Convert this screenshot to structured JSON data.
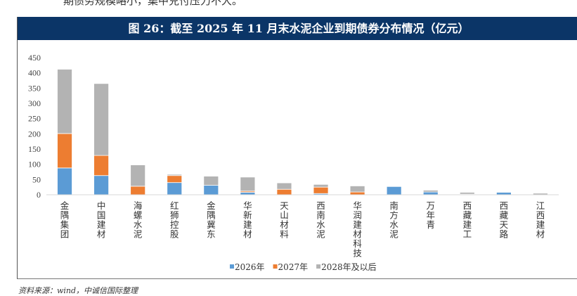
{
  "top_text": "期债务规模略小，集中兑付压力不大。",
  "header": {
    "title": "图 26：截至 2025 年 11 月末水泥企业到期债券分布情况（亿元）"
  },
  "source": "资料来源：wind，中诚信国际整理",
  "colors": {
    "header_bg": "#0b3567",
    "s2026": "#5b9bd5",
    "s2027": "#ed7d31",
    "s2028": "#b3b3b3"
  },
  "chart_data": {
    "type": "bar",
    "stacked": true,
    "title": "",
    "xlabel": "",
    "ylabel": "",
    "ylim": [
      0,
      450
    ],
    "yticks": [
      0,
      50,
      100,
      150,
      200,
      250,
      300,
      350,
      400,
      450
    ],
    "grid": false,
    "legend_position": "bottom",
    "categories": [
      "金隅集团",
      "中国建材",
      "海螺水泥",
      "红狮控股",
      "金隅冀东",
      "华新建材",
      "天山材料",
      "西南水泥",
      "华润建材科技",
      "南方水泥",
      "万年青",
      "西藏建工",
      "西藏天路",
      "江西建材"
    ],
    "series": [
      {
        "name": "2026年",
        "color": "#5b9bd5",
        "values": [
          88,
          63,
          0,
          40,
          31,
          8,
          0,
          4,
          0,
          27,
          9,
          2,
          8,
          0
        ]
      },
      {
        "name": "2027年",
        "color": "#ed7d31",
        "values": [
          113,
          66,
          28,
          23,
          0,
          4,
          18,
          21,
          9,
          0,
          0,
          0,
          0,
          0
        ]
      },
      {
        "name": "2028年及以后",
        "color": "#b3b3b3",
        "values": [
          211,
          236,
          70,
          4,
          30,
          46,
          21,
          9,
          20,
          0,
          6,
          6,
          0,
          5
        ]
      }
    ]
  }
}
